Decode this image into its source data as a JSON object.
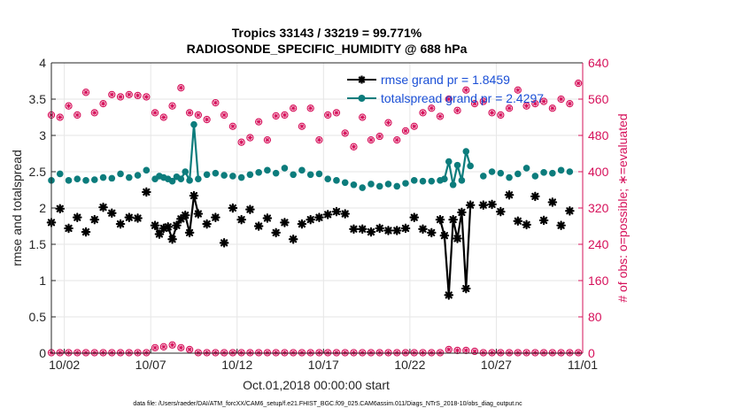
{
  "chart_data": {
    "type": "line",
    "title": "Tropics 33143 / 33219 = 99.771%",
    "subtitle": "RADIOSONDE_SPECIFIC_HUMIDITY @ 688 hPa",
    "xlabel": "Oct.01,2018 00:00:00 start",
    "ylabel": "rmse and totalspread",
    "ylabel_right": "# of obs: o=possible; ∗=evaluated",
    "footer": "data file: /Users/raeder/DAI/ATM_forcXX/CAM6_setup/f.e21.FHIST_BGC.f09_025.CAM6assim.011/Diags_NTrS_2018-10/obs_diag_output.nc",
    "x_tick_labels": [
      "10/02",
      "10/07",
      "10/12",
      "10/17",
      "10/22",
      "10/27",
      "11/01"
    ],
    "x_tick_values": [
      2,
      7,
      12,
      17,
      22,
      27,
      32
    ],
    "xlim": [
      1.25,
      32
    ],
    "ylim": [
      0,
      4
    ],
    "y_ticks": [
      "0",
      "0.5",
      "1",
      "1.5",
      "2",
      "2.5",
      "3",
      "3.5",
      "4"
    ],
    "ylim_right": [
      0,
      640
    ],
    "y_ticks_right": [
      "0",
      "80",
      "160",
      "240",
      "320",
      "400",
      "480",
      "560",
      "640"
    ],
    "legend_location": "top-right",
    "series": [
      {
        "name": "rmse",
        "legend_label": "rmse grand pr = 1.8459",
        "color": "#000000",
        "marker": "asterisk",
        "points": [
          [
            1.25,
            1.8
          ],
          [
            1.75,
            1.99
          ],
          [
            2.25,
            1.72
          ],
          [
            2.75,
            1.87
          ],
          [
            3.25,
            1.67
          ],
          [
            3.75,
            1.84
          ],
          [
            4.25,
            2.01
          ],
          [
            4.75,
            1.93
          ],
          [
            5.25,
            1.78
          ],
          [
            5.75,
            1.87
          ],
          [
            6.25,
            1.86
          ],
          [
            6.75,
            2.22
          ],
          [
            7.25,
            1.76
          ],
          [
            7.5,
            1.64
          ],
          [
            7.75,
            1.72
          ],
          [
            8.0,
            1.74
          ],
          [
            8.25,
            1.57
          ],
          [
            8.5,
            1.76
          ],
          [
            8.75,
            1.85
          ],
          [
            9.0,
            1.9
          ],
          [
            9.25,
            1.66
          ],
          [
            9.5,
            2.17
          ],
          [
            9.75,
            1.92
          ],
          [
            10.25,
            1.78
          ],
          [
            10.75,
            1.87
          ],
          [
            11.25,
            1.52
          ],
          [
            11.75,
            2.0
          ],
          [
            12.25,
            1.84
          ],
          [
            12.75,
            1.98
          ],
          [
            13.25,
            1.75
          ],
          [
            13.75,
            1.86
          ],
          [
            14.25,
            1.66
          ],
          [
            14.75,
            1.8
          ],
          [
            15.25,
            1.57
          ],
          [
            15.75,
            1.78
          ],
          [
            16.25,
            1.84
          ],
          [
            16.75,
            1.87
          ],
          [
            17.25,
            1.91
          ],
          [
            17.75,
            1.95
          ],
          [
            18.25,
            1.92
          ],
          [
            18.75,
            1.71
          ],
          [
            19.25,
            1.71
          ],
          [
            19.75,
            1.67
          ],
          [
            20.25,
            1.72
          ],
          [
            20.75,
            1.69
          ],
          [
            21.25,
            1.69
          ],
          [
            21.75,
            1.72
          ],
          [
            22.25,
            1.87
          ],
          [
            22.75,
            1.71
          ],
          [
            23.25,
            1.66
          ],
          [
            23.75,
            1.84
          ],
          [
            24.0,
            1.62
          ],
          [
            24.25,
            0.8
          ],
          [
            24.5,
            1.84
          ],
          [
            24.75,
            1.58
          ],
          [
            25.0,
            1.94
          ],
          [
            25.25,
            0.89
          ],
          [
            25.5,
            2.04
          ],
          [
            26.25,
            2.04
          ],
          [
            26.75,
            2.05
          ],
          [
            27.25,
            1.95
          ],
          [
            27.75,
            2.18
          ],
          [
            28.25,
            1.82
          ],
          [
            28.75,
            1.77
          ],
          [
            29.25,
            2.16
          ],
          [
            29.75,
            1.83
          ],
          [
            30.25,
            2.08
          ],
          [
            30.75,
            1.76
          ],
          [
            31.25,
            1.96
          ]
        ],
        "connected_segments": [
          [
            7.25,
            10.0
          ],
          [
            23.75,
            25.5
          ]
        ]
      },
      {
        "name": "totalspread",
        "legend_label": "totalspread grand pr = 2.4297",
        "color": "#0c7c7c",
        "marker": "dot",
        "points": [
          [
            1.25,
            2.38
          ],
          [
            1.75,
            2.47
          ],
          [
            2.25,
            2.38
          ],
          [
            2.75,
            2.4
          ],
          [
            3.25,
            2.38
          ],
          [
            3.75,
            2.39
          ],
          [
            4.25,
            2.42
          ],
          [
            4.75,
            2.41
          ],
          [
            5.25,
            2.47
          ],
          [
            5.75,
            2.42
          ],
          [
            6.25,
            2.45
          ],
          [
            6.75,
            2.52
          ],
          [
            7.25,
            2.4
          ],
          [
            7.5,
            2.44
          ],
          [
            7.75,
            2.42
          ],
          [
            8.0,
            2.4
          ],
          [
            8.25,
            2.37
          ],
          [
            8.5,
            2.43
          ],
          [
            8.75,
            2.4
          ],
          [
            9.0,
            2.5
          ],
          [
            9.25,
            2.38
          ],
          [
            9.5,
            3.15
          ],
          [
            9.75,
            2.4
          ],
          [
            10.25,
            2.46
          ],
          [
            10.75,
            2.48
          ],
          [
            11.25,
            2.45
          ],
          [
            11.75,
            2.44
          ],
          [
            12.25,
            2.42
          ],
          [
            12.75,
            2.46
          ],
          [
            13.25,
            2.49
          ],
          [
            13.75,
            2.52
          ],
          [
            14.25,
            2.48
          ],
          [
            14.75,
            2.55
          ],
          [
            15.25,
            2.46
          ],
          [
            15.75,
            2.52
          ],
          [
            16.25,
            2.46
          ],
          [
            16.75,
            2.47
          ],
          [
            17.25,
            2.4
          ],
          [
            17.75,
            2.38
          ],
          [
            18.25,
            2.35
          ],
          [
            18.75,
            2.32
          ],
          [
            19.25,
            2.28
          ],
          [
            19.75,
            2.33
          ],
          [
            20.25,
            2.3
          ],
          [
            20.75,
            2.33
          ],
          [
            21.25,
            2.3
          ],
          [
            21.75,
            2.34
          ],
          [
            22.25,
            2.38
          ],
          [
            22.75,
            2.37
          ],
          [
            23.25,
            2.37
          ],
          [
            23.75,
            2.38
          ],
          [
            24.0,
            2.4
          ],
          [
            24.25,
            2.64
          ],
          [
            24.5,
            2.32
          ],
          [
            24.75,
            2.59
          ],
          [
            25.0,
            2.38
          ],
          [
            25.25,
            2.78
          ],
          [
            25.5,
            2.58
          ],
          [
            26.25,
            2.44
          ],
          [
            26.75,
            2.5
          ],
          [
            27.25,
            2.48
          ],
          [
            27.75,
            2.42
          ],
          [
            28.25,
            2.47
          ],
          [
            28.75,
            2.55
          ],
          [
            29.25,
            2.44
          ],
          [
            29.75,
            2.49
          ],
          [
            30.25,
            2.48
          ],
          [
            30.75,
            2.52
          ],
          [
            31.25,
            2.5
          ]
        ],
        "connected_segments": [
          [
            7.25,
            10.0
          ],
          [
            23.75,
            25.5
          ]
        ]
      },
      {
        "name": "obs_possible",
        "axis": "right",
        "color": "#d6105a",
        "marker": "circle",
        "values_evaluated_equal": true,
        "points": [
          [
            1.25,
            525
          ],
          [
            1.75,
            520
          ],
          [
            2.25,
            545
          ],
          [
            2.75,
            525
          ],
          [
            3.25,
            575
          ],
          [
            3.75,
            530
          ],
          [
            4.25,
            550
          ],
          [
            4.75,
            570
          ],
          [
            5.25,
            565
          ],
          [
            5.75,
            570
          ],
          [
            6.25,
            568
          ],
          [
            6.75,
            565
          ],
          [
            7.25,
            530
          ],
          [
            7.75,
            520
          ],
          [
            8.25,
            545
          ],
          [
            8.75,
            585
          ],
          [
            9.25,
            530
          ],
          [
            9.75,
            525
          ],
          [
            10.25,
            515
          ],
          [
            10.75,
            552
          ],
          [
            11.25,
            525
          ],
          [
            11.75,
            500
          ],
          [
            12.25,
            465
          ],
          [
            12.75,
            475
          ],
          [
            13.25,
            510
          ],
          [
            13.75,
            470
          ],
          [
            14.25,
            523
          ],
          [
            14.75,
            525
          ],
          [
            15.25,
            540
          ],
          [
            15.75,
            500
          ],
          [
            16.25,
            540
          ],
          [
            16.75,
            470
          ],
          [
            17.25,
            525
          ],
          [
            17.75,
            530
          ],
          [
            18.25,
            485
          ],
          [
            18.75,
            455
          ],
          [
            19.25,
            520
          ],
          [
            19.75,
            470
          ],
          [
            20.25,
            478
          ],
          [
            20.75,
            508
          ],
          [
            21.25,
            470
          ],
          [
            21.75,
            490
          ],
          [
            22.25,
            500
          ],
          [
            22.75,
            530
          ],
          [
            23.25,
            540
          ],
          [
            23.75,
            522
          ],
          [
            24.25,
            560
          ],
          [
            24.75,
            535
          ],
          [
            25.25,
            580
          ],
          [
            25.75,
            550
          ],
          [
            26.25,
            555
          ],
          [
            26.75,
            530
          ],
          [
            27.25,
            525
          ],
          [
            27.75,
            540
          ],
          [
            28.25,
            580
          ],
          [
            28.75,
            545
          ],
          [
            29.25,
            550
          ],
          [
            29.75,
            555
          ],
          [
            30.25,
            540
          ],
          [
            30.75,
            560
          ],
          [
            31.25,
            550
          ],
          [
            31.75,
            595
          ]
        ]
      },
      {
        "name": "obs_possible_low",
        "axis": "right",
        "color": "#d6105a",
        "marker": "circle",
        "points": [
          [
            1.25,
            1
          ],
          [
            1.75,
            1
          ],
          [
            2.25,
            1
          ],
          [
            2.75,
            1
          ],
          [
            3.25,
            1
          ],
          [
            3.75,
            1
          ],
          [
            4.25,
            1
          ],
          [
            4.75,
            1
          ],
          [
            5.25,
            1
          ],
          [
            5.75,
            1
          ],
          [
            6.25,
            1
          ],
          [
            6.75,
            1
          ],
          [
            7.25,
            12
          ],
          [
            7.75,
            14
          ],
          [
            8.25,
            18
          ],
          [
            8.75,
            12
          ],
          [
            9.25,
            8
          ],
          [
            9.75,
            1
          ],
          [
            10.25,
            1
          ],
          [
            10.75,
            1
          ],
          [
            11.25,
            1
          ],
          [
            11.75,
            1
          ],
          [
            12.25,
            1
          ],
          [
            12.75,
            1
          ],
          [
            13.25,
            1
          ],
          [
            13.75,
            1
          ],
          [
            14.25,
            1
          ],
          [
            14.75,
            1
          ],
          [
            15.25,
            1
          ],
          [
            15.75,
            1
          ],
          [
            16.25,
            1
          ],
          [
            16.75,
            1
          ],
          [
            17.25,
            1
          ],
          [
            17.75,
            1
          ],
          [
            18.25,
            1
          ],
          [
            18.75,
            1
          ],
          [
            19.25,
            1
          ],
          [
            19.75,
            1
          ],
          [
            20.25,
            1
          ],
          [
            20.75,
            1
          ],
          [
            21.25,
            1
          ],
          [
            21.75,
            1
          ],
          [
            22.25,
            1
          ],
          [
            22.75,
            1
          ],
          [
            23.25,
            1
          ],
          [
            23.75,
            1
          ],
          [
            24.25,
            8
          ],
          [
            24.75,
            6
          ],
          [
            25.25,
            6
          ],
          [
            25.75,
            4
          ],
          [
            26.25,
            1
          ],
          [
            26.75,
            1
          ],
          [
            27.25,
            1
          ],
          [
            27.75,
            1
          ],
          [
            28.25,
            1
          ],
          [
            28.75,
            1
          ],
          [
            29.25,
            1
          ],
          [
            29.75,
            1
          ],
          [
            30.25,
            1
          ],
          [
            30.75,
            1
          ],
          [
            31.25,
            1
          ],
          [
            31.75,
            1
          ]
        ]
      }
    ]
  }
}
